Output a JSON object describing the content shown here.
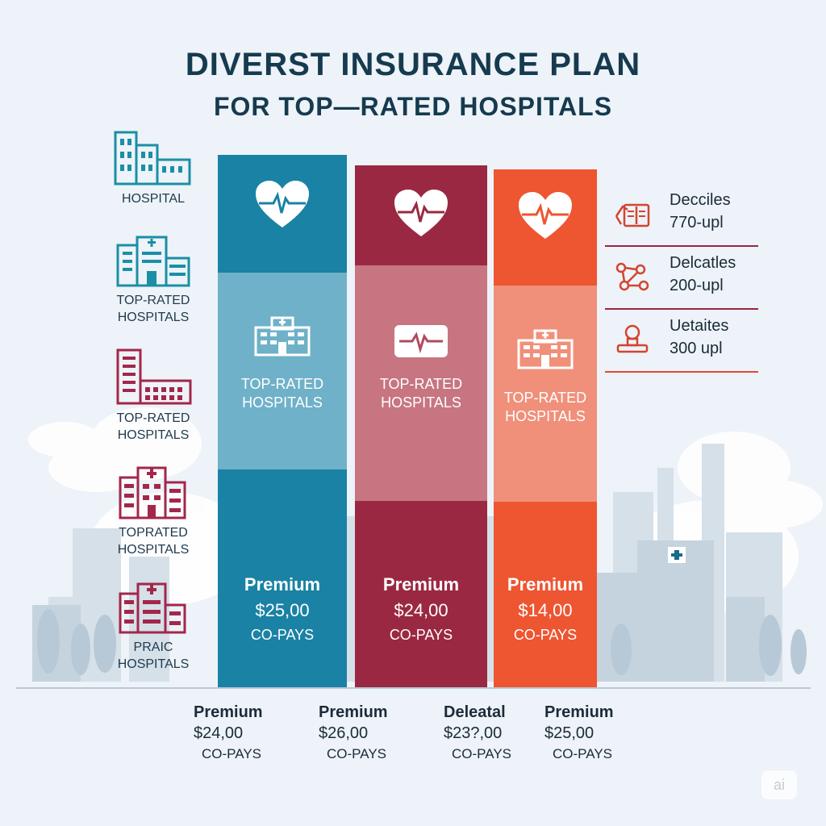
{
  "title": {
    "line1": "DIVERST INSURANCE PLAN",
    "line2": "FOR TOP—RATED HOSPITALS"
  },
  "left_items": [
    {
      "label": "HOSPITAL",
      "icon": "building-icon",
      "color": "#1a8fa6"
    },
    {
      "label": "TOP-RATED\nHOSPITALS",
      "icon": "hospital-icon",
      "color": "#1a8fa6"
    },
    {
      "label": "TOP-RATED\nHOSPITALS",
      "icon": "building-icon",
      "color": "#a3274a"
    },
    {
      "label": "TOPRATED\nHOSPITALS",
      "icon": "hospital-icon",
      "color": "#a3274a"
    },
    {
      "label": "PRAIC\nHOSPITALS",
      "icon": "hospital-icon",
      "color": "#a3274a"
    }
  ],
  "columns": [
    {
      "top_color": "#1a82a4",
      "mid_color": "#6fb1c8",
      "bottom_color": "#1a82a4",
      "icon": "hospital-icon",
      "label": "TOP-RATED\nHOSPITALS",
      "premium_label": "Premium",
      "price": "$25,00",
      "copays": "CO-PAYS"
    },
    {
      "top_color": "#9b2842",
      "mid_color": "#c77581",
      "bottom_color": "#9b2842",
      "icon": "monitor-heart-icon",
      "label": "TOP-RATED\nHOSPITALS",
      "premium_label": "Premium",
      "price": "$24,00",
      "copays": "CO-PAYS"
    },
    {
      "top_color": "#ee5531",
      "mid_color": "#f0907a",
      "bottom_color": "#ee5531",
      "icon": "hospital-icon",
      "label": "TOP-RATED\nHOSPITALS",
      "premium_label": "Premium",
      "price": "$14,00",
      "copays": "CO-PAYS"
    }
  ],
  "bottom": [
    {
      "label": "Premium",
      "price": "$24,00",
      "copays": "CO-PAYS"
    },
    {
      "label": "Premium",
      "price": "$26,00",
      "copays": "CO-PAYS"
    },
    {
      "label": "Deleatal",
      "price": "$23?,00",
      "copays": "CO-PAYS"
    },
    {
      "label": "Premium",
      "price": "$25,00",
      "copays": "CO-PAYS"
    }
  ],
  "right_items": [
    {
      "line1": "Decciles",
      "line2": "770-upl",
      "icon": "documents-icon"
    },
    {
      "line1": "Delcatles",
      "line2": "200-upl",
      "icon": "network-icon"
    },
    {
      "line1": "Uetaites",
      "line2": "300 upl",
      "icon": "stamp-icon"
    }
  ],
  "badge": "ai",
  "colors": {
    "teal": "#1a82a4",
    "maroon": "#9b2842",
    "orange": "#ee5531",
    "navy": "#163a4f"
  }
}
